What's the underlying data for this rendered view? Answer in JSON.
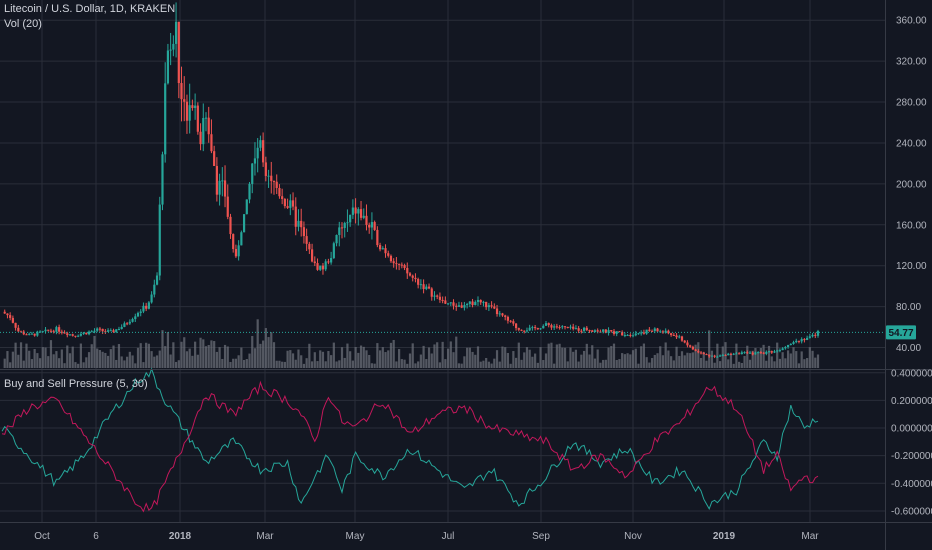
{
  "header": {
    "symbol": "Litecoin / U.S. Dollar, 1D, KRAKEN",
    "volume_label": "Vol (20)",
    "indicator_label": "Buy and Sell Pressure (5, 30)"
  },
  "colors": {
    "background": "#131722",
    "grid": "#2a2e39",
    "up": "#26a69a",
    "down": "#ef5350",
    "volume": "#6b6f78",
    "buy_line": "#26a69a",
    "sell_line": "#c2185b",
    "last_price": "#26a69a"
  },
  "chart_data": [
    {
      "type": "candlestick",
      "title": "Litecoin / U.S. Dollar, 1D, KRAKEN",
      "ylim": [
        20,
        370
      ],
      "y_ticks": [
        "360.00",
        "320.00",
        "280.00",
        "240.00",
        "200.00",
        "160.00",
        "120.00",
        "80.00",
        "40.00"
      ],
      "y_tick_values": [
        360,
        320,
        280,
        240,
        200,
        160,
        120,
        80,
        40
      ],
      "x_labels": [
        "Oct",
        "6",
        "2018",
        "Mar",
        "May",
        "Jul",
        "Sep",
        "Nov",
        "2019",
        "Mar"
      ],
      "last_price": 54.77,
      "last_price_label": "54.77",
      "close_path": [
        [
          0,
          75
        ],
        [
          3,
          70
        ],
        [
          6,
          56
        ],
        [
          10,
          52
        ],
        [
          15,
          55
        ],
        [
          20,
          58
        ],
        [
          26,
          52
        ],
        [
          30,
          54
        ],
        [
          35,
          57
        ],
        [
          40,
          55
        ],
        [
          45,
          62
        ],
        [
          50,
          75
        ],
        [
          53,
          80
        ],
        [
          55,
          90
        ],
        [
          57,
          110
        ],
        [
          59,
          240
        ],
        [
          60,
          300
        ],
        [
          61,
          340
        ],
        [
          62,
          320
        ],
        [
          64,
          355
        ],
        [
          65,
          300
        ],
        [
          67,
          270
        ],
        [
          70,
          290
        ],
        [
          73,
          250
        ],
        [
          76,
          260
        ],
        [
          79,
          200
        ],
        [
          82,
          190
        ],
        [
          84,
          150
        ],
        [
          86,
          125
        ],
        [
          88,
          160
        ],
        [
          90,
          175
        ],
        [
          92,
          220
        ],
        [
          94,
          240
        ],
        [
          96,
          225
        ],
        [
          98,
          215
        ],
        [
          100,
          200
        ],
        [
          103,
          190
        ],
        [
          106,
          175
        ],
        [
          109,
          160
        ],
        [
          112,
          140
        ],
        [
          115,
          120
        ],
        [
          118,
          118
        ],
        [
          121,
          130
        ],
        [
          124,
          155
        ],
        [
          127,
          160
        ],
        [
          130,
          175
        ],
        [
          133,
          165
        ],
        [
          136,
          155
        ],
        [
          139,
          140
        ],
        [
          142,
          132
        ],
        [
          145,
          122
        ],
        [
          150,
          110
        ],
        [
          155,
          100
        ],
        [
          160,
          88
        ],
        [
          165,
          82
        ],
        [
          170,
          80
        ],
        [
          175,
          86
        ],
        [
          180,
          78
        ],
        [
          185,
          68
        ],
        [
          190,
          58
        ],
        [
          195,
          58
        ],
        [
          200,
          62
        ],
        [
          205,
          60
        ],
        [
          210,
          58
        ],
        [
          215,
          58
        ],
        [
          220,
          56
        ],
        [
          225,
          55
        ],
        [
          230,
          53
        ],
        [
          235,
          55
        ],
        [
          240,
          57
        ],
        [
          245,
          54
        ],
        [
          250,
          48
        ],
        [
          253,
          40
        ],
        [
          256,
          35
        ],
        [
          260,
          32
        ],
        [
          265,
          32
        ],
        [
          270,
          35
        ],
        [
          275,
          34
        ],
        [
          280,
          35
        ],
        [
          285,
          37
        ],
        [
          290,
          45
        ],
        [
          295,
          49
        ],
        [
          298,
          51
        ],
        [
          300,
          54.77
        ]
      ],
      "volume_series": "Vol (20)"
    },
    {
      "type": "line",
      "title": "Buy and Sell Pressure (5, 30)",
      "ylim": [
        -0.68,
        0.42
      ],
      "y_ticks": [
        "0.400000",
        "0.200000",
        "0.000000",
        "-0.200000",
        "-0.400000",
        "-0.600000"
      ],
      "y_tick_values": [
        0.4,
        0.2,
        0.0,
        -0.2,
        -0.4,
        -0.6
      ],
      "series": [
        {
          "color": "#26a69a",
          "points": [
            [
              0,
              0.0
            ],
            [
              10,
              -0.2
            ],
            [
              20,
              -0.4
            ],
            [
              30,
              -0.2
            ],
            [
              40,
              0.1
            ],
            [
              50,
              0.35
            ],
            [
              55,
              0.4
            ],
            [
              60,
              0.2
            ],
            [
              65,
              0.05
            ],
            [
              75,
              -0.25
            ],
            [
              85,
              -0.1
            ],
            [
              95,
              -0.3
            ],
            [
              105,
              -0.25
            ],
            [
              110,
              -0.55
            ],
            [
              115,
              -0.35
            ],
            [
              120,
              -0.2
            ],
            [
              125,
              -0.45
            ],
            [
              130,
              -0.2
            ],
            [
              140,
              -0.35
            ],
            [
              150,
              -0.15
            ],
            [
              160,
              -0.3
            ],
            [
              170,
              -0.45
            ],
            [
              180,
              -0.3
            ],
            [
              190,
              -0.55
            ],
            [
              200,
              -0.35
            ],
            [
              210,
              -0.1
            ],
            [
              220,
              -0.25
            ],
            [
              230,
              -0.15
            ],
            [
              240,
              -0.4
            ],
            [
              250,
              -0.3
            ],
            [
              260,
              -0.55
            ],
            [
              270,
              -0.45
            ],
            [
              280,
              -0.1
            ],
            [
              285,
              -0.2
            ],
            [
              290,
              0.15
            ],
            [
              295,
              0.0
            ],
            [
              300,
              0.08
            ]
          ]
        },
        {
          "color": "#c2185b",
          "points": [
            [
              0,
              -0.05
            ],
            [
              10,
              0.15
            ],
            [
              20,
              0.2
            ],
            [
              30,
              -0.05
            ],
            [
              40,
              -0.3
            ],
            [
              50,
              -0.55
            ],
            [
              55,
              -0.6
            ],
            [
              60,
              -0.4
            ],
            [
              65,
              -0.2
            ],
            [
              75,
              0.25
            ],
            [
              85,
              0.1
            ],
            [
              95,
              0.3
            ],
            [
              105,
              0.2
            ],
            [
              110,
              0.1
            ],
            [
              115,
              -0.1
            ],
            [
              120,
              0.25
            ],
            [
              125,
              0.05
            ],
            [
              130,
              0.0
            ],
            [
              140,
              0.2
            ],
            [
              150,
              -0.05
            ],
            [
              160,
              0.1
            ],
            [
              170,
              0.15
            ],
            [
              180,
              0.0
            ],
            [
              190,
              -0.05
            ],
            [
              200,
              -0.1
            ],
            [
              210,
              -0.3
            ],
            [
              220,
              -0.2
            ],
            [
              230,
              -0.35
            ],
            [
              240,
              -0.1
            ],
            [
              250,
              0.05
            ],
            [
              260,
              0.3
            ],
            [
              270,
              0.15
            ],
            [
              280,
              -0.3
            ],
            [
              285,
              -0.2
            ],
            [
              290,
              -0.45
            ],
            [
              295,
              -0.35
            ],
            [
              300,
              -0.38
            ]
          ]
        }
      ]
    }
  ]
}
